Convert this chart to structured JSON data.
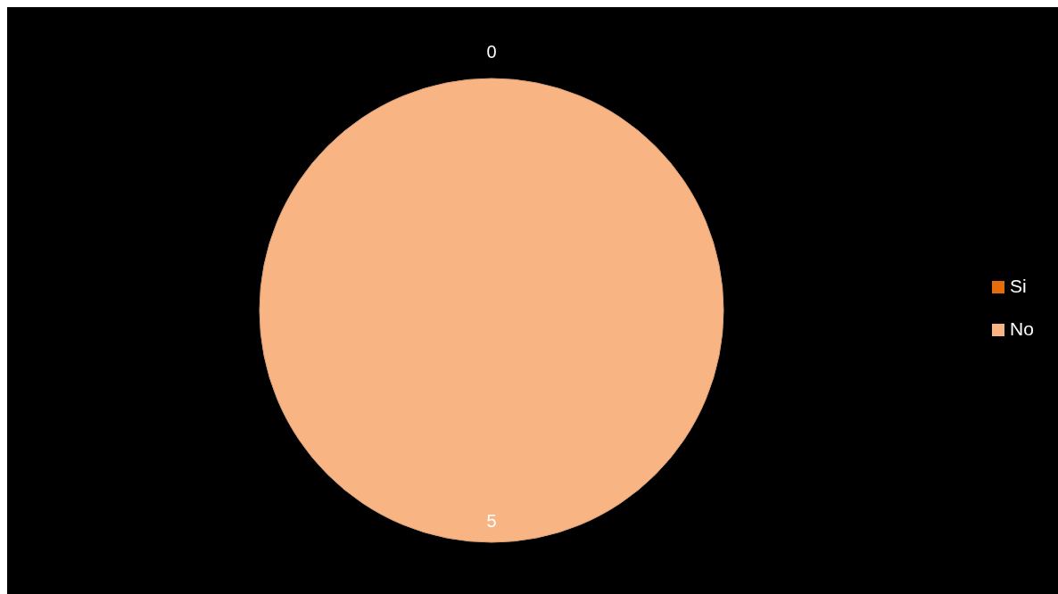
{
  "chart_data": {
    "type": "pie",
    "categories": [
      "Si",
      "No"
    ],
    "values": [
      0,
      5
    ],
    "colors": [
      "#e46c0a",
      "#f9b483"
    ],
    "value_labels": [
      "0",
      "5"
    ],
    "legend": "right"
  }
}
